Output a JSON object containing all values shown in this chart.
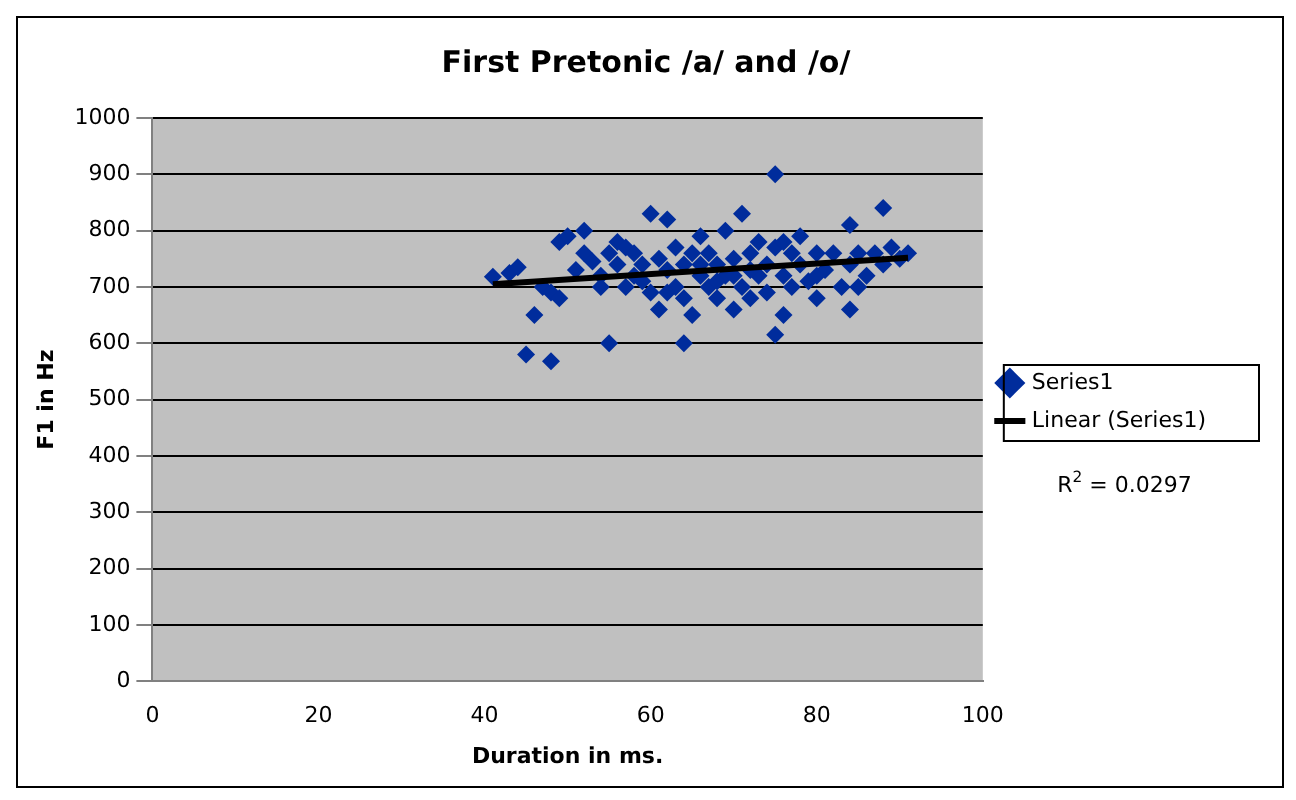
{
  "chart_data": {
    "type": "scatter",
    "title": "First Pretonic /a/ and /o/",
    "xlabel": "Duration in ms.",
    "ylabel": "F1 in Hz",
    "xlim": [
      0,
      100
    ],
    "xticks": [
      0,
      20,
      40,
      60,
      80,
      100
    ],
    "ylim": [
      0,
      1000
    ],
    "yticks": [
      0,
      100,
      200,
      300,
      400,
      500,
      600,
      700,
      800,
      900,
      1000
    ],
    "grid": "y",
    "legend": "right",
    "marker": "diamond",
    "annotations": [
      "R$^{2}$ = 0.0297"
    ],
    "series": [
      {
        "name": "Series1",
        "color": "#002c9c",
        "x": [
          41,
          43,
          44,
          45,
          46,
          47,
          48,
          48,
          49,
          49,
          50,
          51,
          52,
          52,
          53,
          54,
          54,
          55,
          55,
          56,
          56,
          57,
          57,
          58,
          58,
          59,
          60,
          60,
          61,
          61,
          62,
          62,
          63,
          63,
          64,
          64,
          64,
          65,
          65,
          66,
          66,
          67,
          67,
          68,
          68,
          69,
          69,
          70,
          70,
          71,
          71,
          72,
          72,
          73,
          73,
          74,
          74,
          75,
          75,
          75,
          76,
          76,
          77,
          77,
          78,
          78,
          79,
          80,
          80,
          81,
          82,
          83,
          84,
          84,
          84,
          85,
          85,
          86,
          87,
          88,
          88,
          89,
          90,
          91,
          68,
          66,
          70,
          72,
          62,
          59,
          76,
          80
        ],
        "values": [
          718,
          725,
          735,
          580,
          650,
          700,
          690,
          568,
          680,
          780,
          790,
          730,
          800,
          760,
          745,
          720,
          700,
          600,
          760,
          740,
          780,
          770,
          700,
          720,
          760,
          710,
          830,
          690,
          750,
          660,
          820,
          730,
          700,
          770,
          600,
          680,
          740,
          760,
          650,
          720,
          790,
          700,
          760,
          680,
          740,
          720,
          800,
          660,
          750,
          830,
          700,
          760,
          680,
          720,
          780,
          740,
          690,
          900,
          615,
          770,
          720,
          650,
          760,
          700,
          740,
          790,
          710,
          760,
          680,
          730,
          760,
          700,
          810,
          660,
          740,
          700,
          760,
          720,
          760,
          840,
          740,
          770,
          750,
          760,
          710,
          740,
          720,
          730,
          690,
          740,
          780,
          720
        ]
      },
      {
        "name": "Linear (Series1)",
        "type": "line",
        "color": "#000000",
        "marker": "none",
        "x": [
          41,
          91
        ],
        "values": [
          705,
          752
        ]
      }
    ]
  }
}
